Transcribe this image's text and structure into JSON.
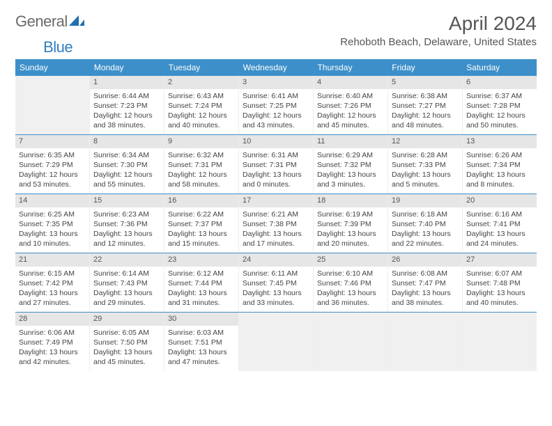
{
  "logo": {
    "text1": "General",
    "text2": "Blue"
  },
  "title": "April 2024",
  "location": "Rehoboth Beach, Delaware, United States",
  "colors": {
    "header_bg": "#3d8fc9",
    "header_text": "#ffffff",
    "daynum_bg": "#e6e6e6",
    "empty_bg": "#f0f0f0",
    "week_border": "#3d8fc9",
    "body_text": "#444444"
  },
  "day_names": [
    "Sunday",
    "Monday",
    "Tuesday",
    "Wednesday",
    "Thursday",
    "Friday",
    "Saturday"
  ],
  "weeks": [
    [
      null,
      {
        "n": "1",
        "sr": "6:44 AM",
        "ss": "7:23 PM",
        "dl": "12 hours and 38 minutes."
      },
      {
        "n": "2",
        "sr": "6:43 AM",
        "ss": "7:24 PM",
        "dl": "12 hours and 40 minutes."
      },
      {
        "n": "3",
        "sr": "6:41 AM",
        "ss": "7:25 PM",
        "dl": "12 hours and 43 minutes."
      },
      {
        "n": "4",
        "sr": "6:40 AM",
        "ss": "7:26 PM",
        "dl": "12 hours and 45 minutes."
      },
      {
        "n": "5",
        "sr": "6:38 AM",
        "ss": "7:27 PM",
        "dl": "12 hours and 48 minutes."
      },
      {
        "n": "6",
        "sr": "6:37 AM",
        "ss": "7:28 PM",
        "dl": "12 hours and 50 minutes."
      }
    ],
    [
      {
        "n": "7",
        "sr": "6:35 AM",
        "ss": "7:29 PM",
        "dl": "12 hours and 53 minutes."
      },
      {
        "n": "8",
        "sr": "6:34 AM",
        "ss": "7:30 PM",
        "dl": "12 hours and 55 minutes."
      },
      {
        "n": "9",
        "sr": "6:32 AM",
        "ss": "7:31 PM",
        "dl": "12 hours and 58 minutes."
      },
      {
        "n": "10",
        "sr": "6:31 AM",
        "ss": "7:31 PM",
        "dl": "13 hours and 0 minutes."
      },
      {
        "n": "11",
        "sr": "6:29 AM",
        "ss": "7:32 PM",
        "dl": "13 hours and 3 minutes."
      },
      {
        "n": "12",
        "sr": "6:28 AM",
        "ss": "7:33 PM",
        "dl": "13 hours and 5 minutes."
      },
      {
        "n": "13",
        "sr": "6:26 AM",
        "ss": "7:34 PM",
        "dl": "13 hours and 8 minutes."
      }
    ],
    [
      {
        "n": "14",
        "sr": "6:25 AM",
        "ss": "7:35 PM",
        "dl": "13 hours and 10 minutes."
      },
      {
        "n": "15",
        "sr": "6:23 AM",
        "ss": "7:36 PM",
        "dl": "13 hours and 12 minutes."
      },
      {
        "n": "16",
        "sr": "6:22 AM",
        "ss": "7:37 PM",
        "dl": "13 hours and 15 minutes."
      },
      {
        "n": "17",
        "sr": "6:21 AM",
        "ss": "7:38 PM",
        "dl": "13 hours and 17 minutes."
      },
      {
        "n": "18",
        "sr": "6:19 AM",
        "ss": "7:39 PM",
        "dl": "13 hours and 20 minutes."
      },
      {
        "n": "19",
        "sr": "6:18 AM",
        "ss": "7:40 PM",
        "dl": "13 hours and 22 minutes."
      },
      {
        "n": "20",
        "sr": "6:16 AM",
        "ss": "7:41 PM",
        "dl": "13 hours and 24 minutes."
      }
    ],
    [
      {
        "n": "21",
        "sr": "6:15 AM",
        "ss": "7:42 PM",
        "dl": "13 hours and 27 minutes."
      },
      {
        "n": "22",
        "sr": "6:14 AM",
        "ss": "7:43 PM",
        "dl": "13 hours and 29 minutes."
      },
      {
        "n": "23",
        "sr": "6:12 AM",
        "ss": "7:44 PM",
        "dl": "13 hours and 31 minutes."
      },
      {
        "n": "24",
        "sr": "6:11 AM",
        "ss": "7:45 PM",
        "dl": "13 hours and 33 minutes."
      },
      {
        "n": "25",
        "sr": "6:10 AM",
        "ss": "7:46 PM",
        "dl": "13 hours and 36 minutes."
      },
      {
        "n": "26",
        "sr": "6:08 AM",
        "ss": "7:47 PM",
        "dl": "13 hours and 38 minutes."
      },
      {
        "n": "27",
        "sr": "6:07 AM",
        "ss": "7:48 PM",
        "dl": "13 hours and 40 minutes."
      }
    ],
    [
      {
        "n": "28",
        "sr": "6:06 AM",
        "ss": "7:49 PM",
        "dl": "13 hours and 42 minutes."
      },
      {
        "n": "29",
        "sr": "6:05 AM",
        "ss": "7:50 PM",
        "dl": "13 hours and 45 minutes."
      },
      {
        "n": "30",
        "sr": "6:03 AM",
        "ss": "7:51 PM",
        "dl": "13 hours and 47 minutes."
      },
      null,
      null,
      null,
      null
    ]
  ],
  "labels": {
    "sunrise_prefix": "Sunrise: ",
    "sunset_prefix": "Sunset: ",
    "daylight_prefix": "Daylight: "
  }
}
